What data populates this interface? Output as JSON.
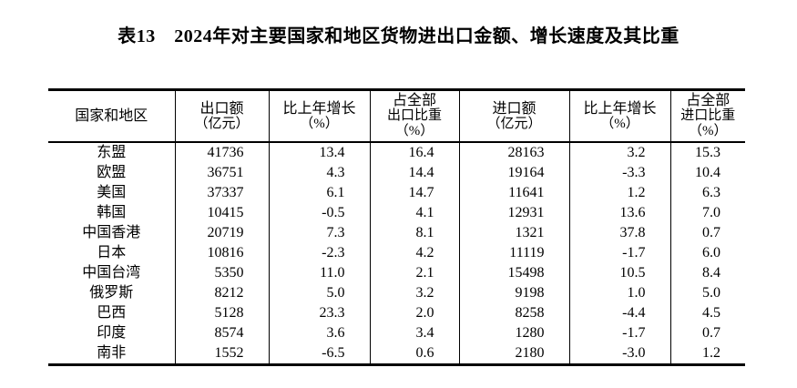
{
  "title": "表13　2024年对主要国家和地区货物进出口金额、增长速度及其比重",
  "table": {
    "columns": [
      {
        "lines": [
          "国家和地区"
        ]
      },
      {
        "lines": [
          "出口额",
          "（亿元）"
        ]
      },
      {
        "lines": [
          "比上年增长",
          "（%）"
        ]
      },
      {
        "lines": [
          "占全部",
          "出口比重",
          "（%）"
        ]
      },
      {
        "lines": [
          "进口额",
          "（亿元）"
        ]
      },
      {
        "lines": [
          "比上年增长",
          "（%）"
        ]
      },
      {
        "lines": [
          "占全部",
          "进口比重",
          "（%）"
        ]
      }
    ],
    "rows": [
      [
        "东盟",
        "41736",
        "13.4",
        "16.4",
        "28163",
        "3.2",
        "15.3"
      ],
      [
        "欧盟",
        "36751",
        "4.3",
        "14.4",
        "19164",
        "-3.3",
        "10.4"
      ],
      [
        "美国",
        "37337",
        "6.1",
        "14.7",
        "11641",
        "1.2",
        "6.3"
      ],
      [
        "韩国",
        "10415",
        "-0.5",
        "4.1",
        "12931",
        "13.6",
        "7.0"
      ],
      [
        "中国香港",
        "20719",
        "7.3",
        "8.1",
        "1321",
        "37.8",
        "0.7"
      ],
      [
        "日本",
        "10816",
        "-2.3",
        "4.2",
        "11119",
        "-1.7",
        "6.0"
      ],
      [
        "中国台湾",
        "5350",
        "11.0",
        "2.1",
        "15498",
        "10.5",
        "8.4"
      ],
      [
        "俄罗斯",
        "8212",
        "5.0",
        "3.2",
        "9198",
        "1.0",
        "5.0"
      ],
      [
        "巴西",
        "5128",
        "23.3",
        "2.0",
        "8258",
        "-4.4",
        "4.5"
      ],
      [
        "印度",
        "8574",
        "3.6",
        "3.4",
        "1280",
        "-1.7",
        "0.7"
      ],
      [
        "南非",
        "1552",
        "-6.5",
        "0.6",
        "2180",
        "-3.0",
        "1.2"
      ]
    ]
  }
}
